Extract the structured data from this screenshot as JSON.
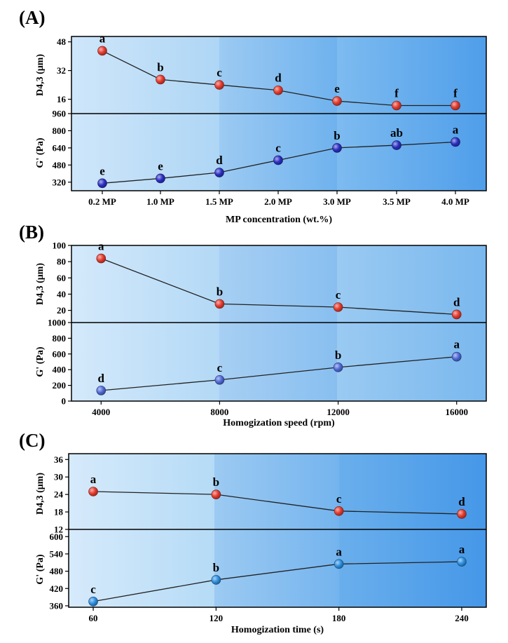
{
  "chart_data": [
    {
      "type": "line",
      "panel_label": "(A)",
      "background_bands": [
        [
          "#cfe6fa",
          "#aed6f5"
        ],
        [
          "#9ccaf2",
          "#6fb2ee"
        ],
        [
          "#7dbbf0",
          "#4f9eea"
        ]
      ],
      "x_categories": [
        "0.2 MP",
        "1.0 MP",
        "1.5 MP",
        "2.0 MP",
        "3.0 MP",
        "3.5 MP",
        "4.0 MP"
      ],
      "xlabel": "MP concentration (wt.%)",
      "subplots": [
        {
          "ylabel": "D4,3 (μm)",
          "yticks": [
            "16",
            "32",
            "48"
          ],
          "ylim": [
            8,
            51
          ],
          "marker_color": "#e53a2c",
          "series": [
            {
              "values": [
                43,
                27,
                24,
                21,
                15,
                12.5,
                12.5
              ]
            }
          ],
          "letters": [
            "a",
            "b",
            "c",
            "d",
            "e",
            "f",
            "f"
          ]
        },
        {
          "ylabel": "G' (Pa)",
          "yticks": [
            "320",
            "480",
            "640",
            "800",
            "960"
          ],
          "ylim": [
            240,
            960
          ],
          "marker_color": "#2b2fc2",
          "series": [
            {
              "values": [
                310,
                355,
                410,
                525,
                640,
                665,
                695
              ]
            }
          ],
          "letters": [
            "e",
            "e",
            "d",
            "c",
            "b",
            "ab",
            "a"
          ]
        }
      ]
    },
    {
      "type": "line",
      "panel_label": "(B)",
      "background_bands": [
        [
          "#d4e9fb",
          "#b3d9f6"
        ],
        [
          "#a7cff3",
          "#88bff0"
        ],
        [
          "#9acaf2",
          "#7ab8ee"
        ]
      ],
      "x": [
        4000,
        8000,
        12000,
        16000
      ],
      "xticks": [
        "4000",
        "8000",
        "12000",
        "16000"
      ],
      "xlim": [
        3000,
        17000
      ],
      "xlabel": "Homogization speed (rpm)",
      "subplots": [
        {
          "ylabel": "D4,3 (μm)",
          "yticks": [
            "20",
            "40",
            "60",
            "80",
            "100"
          ],
          "ylim": [
            5,
            100
          ],
          "marker_color": "#e53a2c",
          "series": [
            {
              "values": [
                84,
                28,
                24,
                15
              ]
            }
          ],
          "letters": [
            "a",
            "b",
            "c",
            "d"
          ]
        },
        {
          "ylabel": "G' (Pa)",
          "yticks": [
            "0",
            "200",
            "400",
            "600",
            "800",
            "1000"
          ],
          "ylim": [
            0,
            1000
          ],
          "marker_color": "#4f6ad8",
          "series": [
            {
              "values": [
                135,
                270,
                430,
                565
              ]
            }
          ],
          "letters": [
            "d",
            "c",
            "b",
            "a"
          ]
        }
      ]
    },
    {
      "type": "line",
      "panel_label": "(C)",
      "background_bands": [
        [
          "#d6eafb",
          "#b5dbf6"
        ],
        [
          "#9ccaf2",
          "#74b4ee"
        ],
        [
          "#6aafec",
          "#4597e8"
        ]
      ],
      "x": [
        60,
        120,
        180,
        240
      ],
      "xticks": [
        "60",
        "120",
        "180",
        "240"
      ],
      "xlim": [
        48,
        252
      ],
      "xlabel": "Homogization time (s)",
      "subplots": [
        {
          "ylabel": "D4,3 (μm)",
          "yticks": [
            "12",
            "18",
            "24",
            "30",
            "36"
          ],
          "ylim": [
            12,
            38
          ],
          "marker_color": "#e53a2c",
          "series": [
            {
              "values": [
                25,
                24,
                18.3,
                17.3
              ]
            }
          ],
          "letters": [
            "a",
            "b",
            "c",
            "d"
          ]
        },
        {
          "ylabel": "G' (Pa)",
          "yticks": [
            "360",
            "420",
            "480",
            "540",
            "600"
          ],
          "ylim": [
            355,
            625
          ],
          "marker_color": "#2d8fe0",
          "series": [
            {
              "values": [
                375,
                450,
                505,
                513
              ]
            }
          ],
          "letters": [
            "c",
            "b",
            "a",
            "a"
          ]
        }
      ]
    }
  ]
}
